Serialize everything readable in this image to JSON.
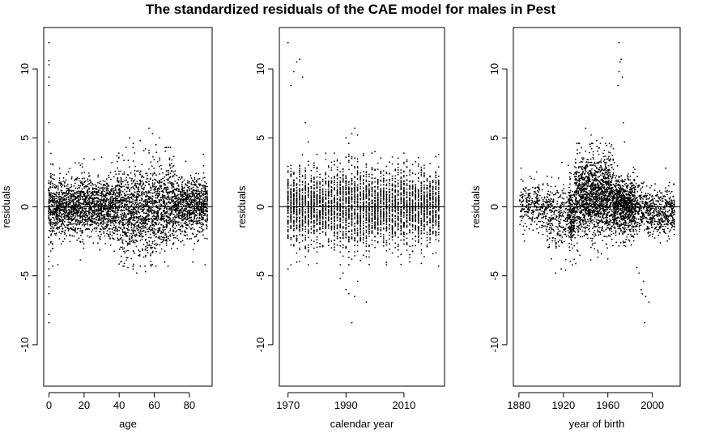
{
  "title": "The standardized residuals of the CAE model for males in Pest",
  "chart_data": [
    {
      "type": "scatter",
      "xlabel": "age",
      "ylabel": "residuals",
      "xlim": [
        -3,
        93
      ],
      "ylim": [
        -13,
        13
      ],
      "xticks": [
        0,
        20,
        40,
        60,
        80
      ],
      "yticks": [
        -10,
        -5,
        0,
        5,
        10
      ],
      "reference_line": 0,
      "grid": false,
      "points": [
        [
          0,
          11.9
        ],
        [
          0,
          10.6
        ],
        [
          0,
          10.3
        ],
        [
          0,
          9.4
        ],
        [
          0,
          8.8
        ],
        [
          0,
          6.1
        ],
        [
          0,
          4.7
        ],
        [
          0,
          -4.5
        ],
        [
          0,
          -5.0
        ],
        [
          0,
          -5.8
        ],
        [
          0,
          -6.3
        ],
        [
          0,
          -7.8
        ],
        [
          0,
          -8.4
        ],
        [
          1,
          3.1
        ],
        [
          1,
          -3.2
        ],
        [
          1,
          2.4
        ],
        [
          1,
          -2.6
        ],
        [
          46,
          5.0
        ],
        [
          48,
          4.6
        ],
        [
          52,
          4.8
        ],
        [
          55,
          4.2
        ],
        [
          57,
          5.7
        ],
        [
          59,
          5.3
        ],
        [
          61,
          4.5
        ],
        [
          63,
          5.0
        ],
        [
          44,
          4.3
        ],
        [
          30,
          3.6
        ],
        [
          20,
          3.5
        ],
        [
          15,
          3.2
        ],
        [
          70,
          3.4
        ],
        [
          78,
          3.3
        ],
        [
          88,
          3.8
        ],
        [
          50,
          -4.8
        ],
        [
          48,
          -4.5
        ],
        [
          45,
          -4.4
        ],
        [
          52,
          -4.3
        ],
        [
          55,
          -4.7
        ],
        [
          58,
          -4.2
        ],
        [
          66,
          -4.0
        ],
        [
          82,
          -4.0
        ],
        [
          89,
          -4.2
        ]
      ]
    },
    {
      "type": "scatter",
      "xlabel": "calendar year",
      "ylabel": "residuals",
      "xlim": [
        1967,
        2024
      ],
      "ylim": [
        -13,
        13
      ],
      "xticks": [
        1970,
        1990,
        2010
      ],
      "yticks": [
        -10,
        -5,
        0,
        5,
        10
      ],
      "reference_line": 0,
      "grid": false,
      "points": [
        [
          1970,
          11.9
        ],
        [
          1971,
          8.8
        ],
        [
          1972,
          9.8
        ],
        [
          1973,
          10.5
        ],
        [
          1974,
          10.7
        ],
        [
          1975,
          9.4
        ],
        [
          1976,
          6.1
        ],
        [
          1977,
          4.7
        ],
        [
          1990,
          5.0
        ],
        [
          1992,
          5.3
        ],
        [
          1993,
          5.7
        ],
        [
          1994,
          5.2
        ],
        [
          1991,
          4.6
        ],
        [
          1990,
          -6.0
        ],
        [
          1991,
          -6.3
        ],
        [
          1992,
          -8.4
        ],
        [
          1993,
          -6.5
        ],
        [
          1994,
          -5.4
        ],
        [
          1997,
          -6.9
        ],
        [
          1988,
          -5.2
        ],
        [
          1989,
          -4.8
        ],
        [
          1970,
          -4.5
        ],
        [
          1971,
          -4.2
        ],
        [
          1980,
          -4.1
        ],
        [
          2004,
          -4.2
        ],
        [
          2016,
          -4.1
        ],
        [
          2022,
          -4.3
        ],
        [
          1980,
          3.8
        ],
        [
          2000,
          4.0
        ],
        [
          2010,
          3.9
        ],
        [
          2022,
          3.8
        ]
      ]
    },
    {
      "type": "scatter",
      "xlabel": "year of birth",
      "ylabel": "residuals",
      "xlim": [
        1875,
        2025
      ],
      "ylim": [
        -13,
        13
      ],
      "xticks": [
        1880,
        1920,
        1960,
        2000
      ],
      "yticks": [
        -10,
        -5,
        0,
        5,
        10
      ],
      "reference_line": 0,
      "grid": false,
      "points": [
        [
          1970,
          11.9
        ],
        [
          1971,
          10.5
        ],
        [
          1972,
          10.7
        ],
        [
          1970,
          9.8
        ],
        [
          1969,
          8.8
        ],
        [
          1973,
          9.4
        ],
        [
          1974,
          6.1
        ],
        [
          1975,
          4.7
        ],
        [
          1940,
          5.7
        ],
        [
          1945,
          5.2
        ],
        [
          1950,
          4.8
        ],
        [
          1955,
          5.0
        ],
        [
          1990,
          -6.0
        ],
        [
          1991,
          -6.3
        ],
        [
          1993,
          -8.4
        ],
        [
          1994,
          -6.5
        ],
        [
          1992,
          -5.4
        ],
        [
          1997,
          -6.9
        ],
        [
          1988,
          -4.8
        ],
        [
          1986,
          -4.4
        ],
        [
          1913,
          -4.8
        ],
        [
          1918,
          -4.5
        ],
        [
          1922,
          -4.6
        ],
        [
          1928,
          -4.2
        ],
        [
          1882,
          2.8
        ],
        [
          1890,
          2.2
        ],
        [
          2012,
          2.8
        ],
        [
          2020,
          -2.0
        ]
      ]
    }
  ]
}
